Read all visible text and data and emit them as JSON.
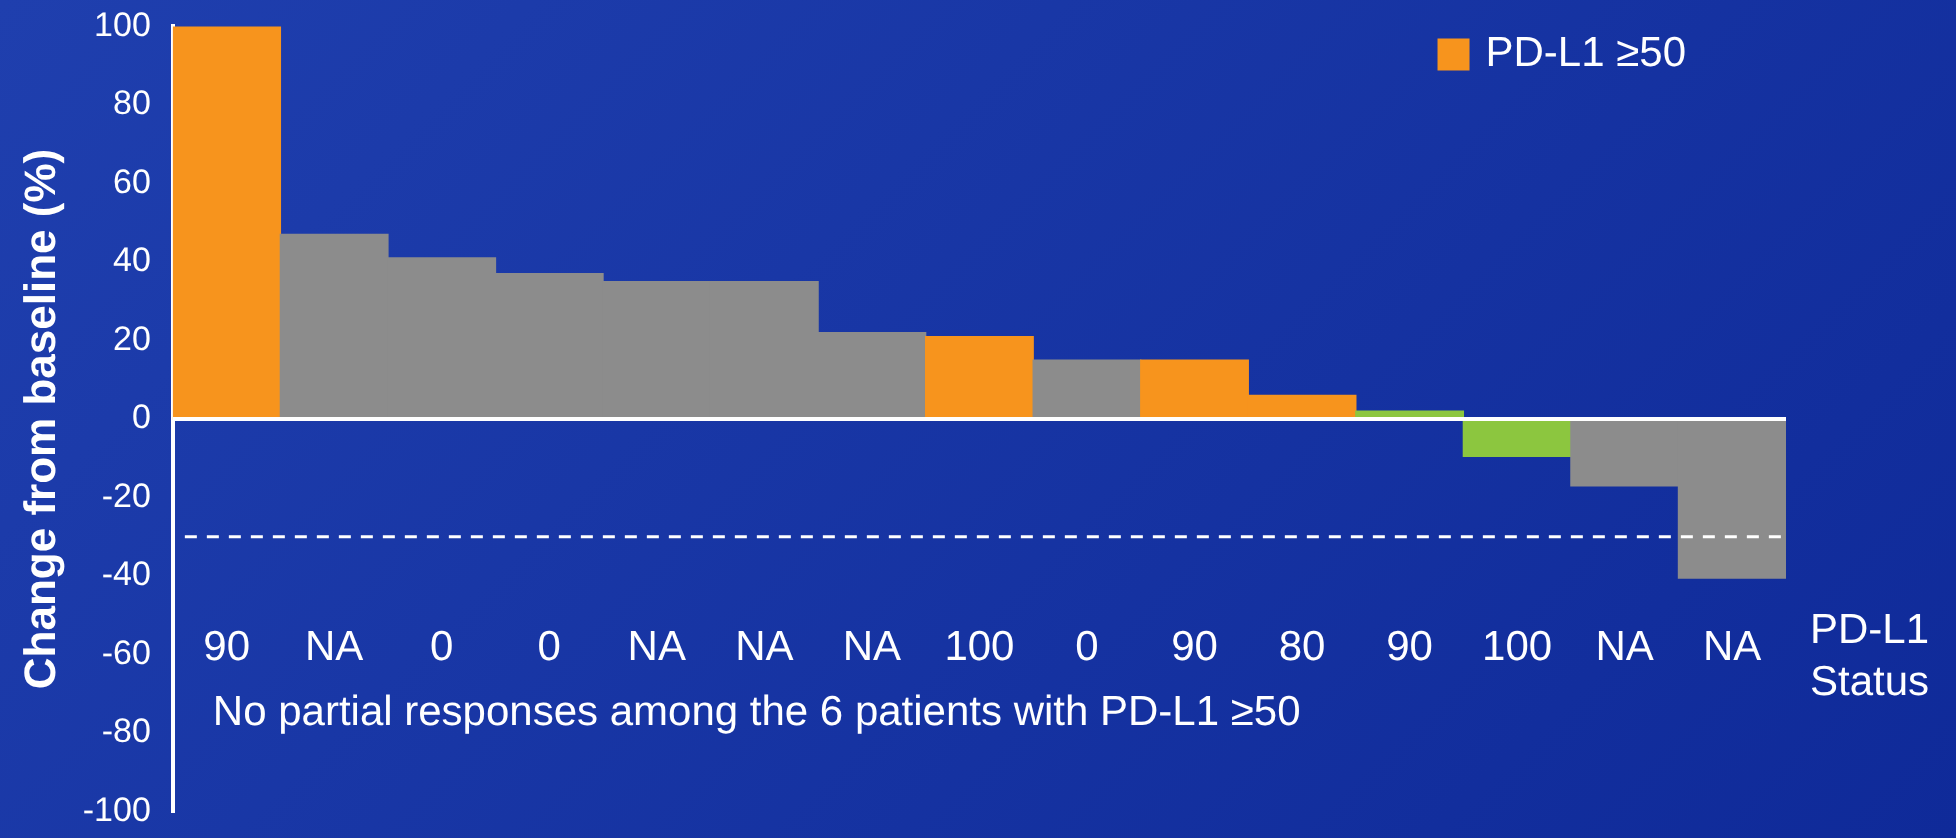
{
  "chart_data": {
    "type": "bar",
    "ylabel": "Change from baseline (%)",
    "xlabel": "PD-L1 Status",
    "categories": [
      "90",
      "NA",
      "0",
      "0",
      "NA",
      "NA",
      "NA",
      "100",
      "0",
      "90",
      "80",
      "90",
      "100",
      "NA",
      "NA"
    ],
    "series": [
      {
        "name": "PD-L1 ≥50",
        "color": "#f7941d",
        "colors": [
          "#f7941d",
          "#8c8c8c",
          "#8c8c8c",
          "#8c8c8c",
          "#8c8c8c",
          "#8c8c8c",
          "#8c8c8c",
          "#f7941d",
          "#8c8c8c",
          "#f7941d",
          "#f7941d",
          "#8cc63f",
          "#8cc63f",
          "#8c8c8c",
          "#8c8c8c"
        ],
        "values": [
          100,
          47,
          41,
          37,
          35,
          35,
          22,
          21,
          15,
          15,
          6,
          2,
          -9.5,
          -17,
          -40.5
        ]
      }
    ],
    "ylim": [
      -100,
      100
    ],
    "yticks": [
      -100,
      -80,
      -60,
      -40,
      -20,
      0,
      20,
      40,
      60,
      80,
      100
    ],
    "ref_lines": [
      {
        "axis": "y",
        "value": 0,
        "color": "#ffffff",
        "line_style": "solid"
      },
      {
        "axis": "y",
        "value": -30,
        "color": "#ffffff",
        "line_style": "dashed"
      }
    ],
    "annotations": [
      "No partial responses among the 6 patients with PD-L1 ≥50"
    ],
    "legend": "top right",
    "grid": false
  }
}
